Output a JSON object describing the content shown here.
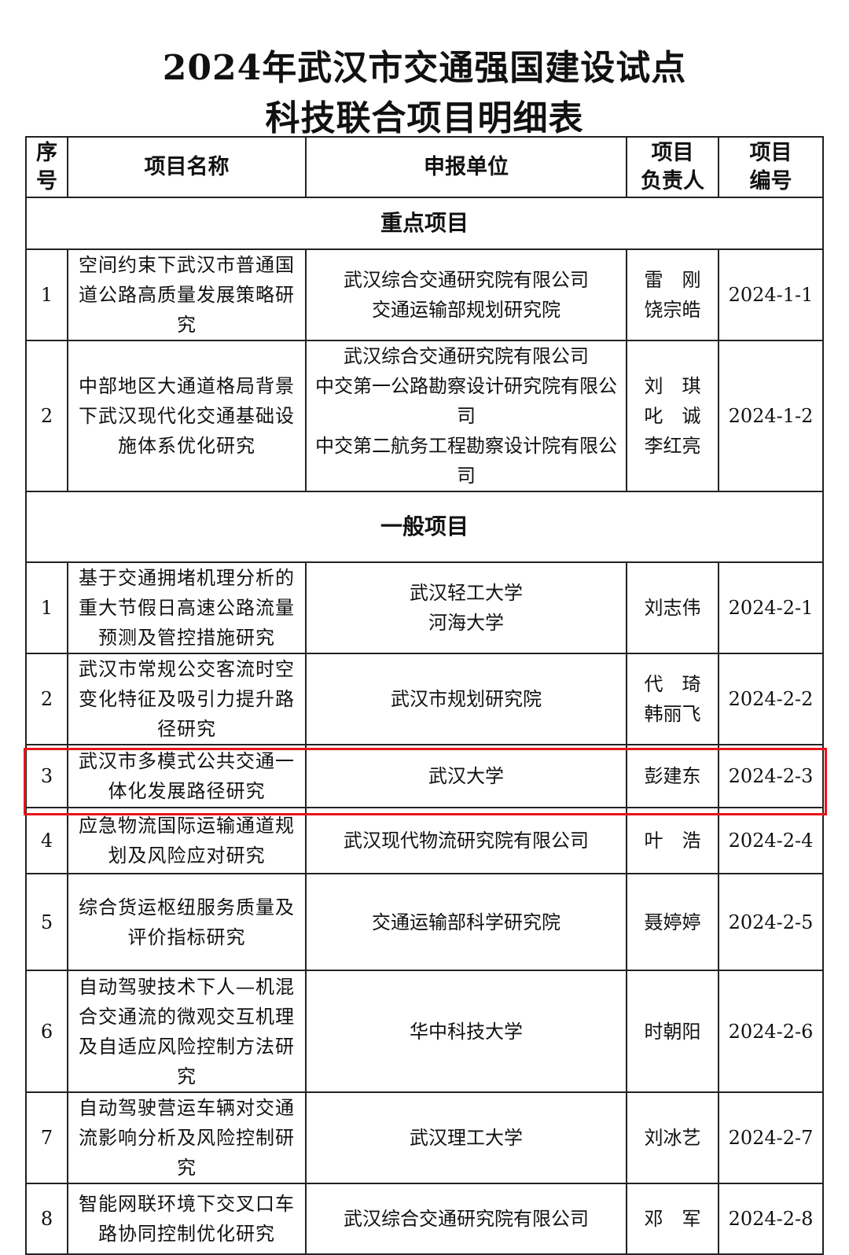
{
  "title_line1": "2024年武汉市交通强国建设试点",
  "title_line2": "科技联合项目明细表",
  "headers": [
    "序\n号",
    "项目名称",
    "申报单位",
    "项目\n负责人",
    "项目\n编号"
  ],
  "highlight_color": "#e8141b",
  "sections": [
    {
      "label": "重点项目",
      "rows": [
        {
          "no": "1",
          "name": "空间约束下武汉市普通国\n道公路高质量发展策略研\n究",
          "unit": "武汉综合交通研究院有限公司\n交通运输部规划研究院",
          "pi": "雷　刚\n饶宗皓",
          "code": "2024-1-1"
        },
        {
          "no": "2",
          "name": "中部地区大通道格局背景\n下武汉现代化交通基础设\n施体系优化研究",
          "unit": "武汉综合交通研究院有限公司\n中交第一公路勘察设计研究院有限公司\n中交第二航务工程勘察设计院有限公司",
          "pi": "刘　琪\n叱　诚\n李红亮",
          "code": "2024-1-2"
        }
      ]
    },
    {
      "label": "一般项目",
      "rows": [
        {
          "no": "1",
          "name": "基于交通拥堵机理分析的\n重大节假日高速公路流量\n预测及管控措施研究",
          "unit": "武汉轻工大学\n河海大学",
          "pi": "刘志伟",
          "code": "2024-2-1"
        },
        {
          "no": "2",
          "name": "武汉市常规公交客流时空\n变化特征及吸引力提升路\n径研究",
          "unit": "武汉市规划研究院",
          "pi": "代　琦\n韩丽飞",
          "code": "2024-2-2"
        },
        {
          "no": "3",
          "name": "武汉市多模式公共交通一\n体化发展路径研究",
          "unit": "武汉大学",
          "pi": "彭建东",
          "code": "2024-2-3"
        },
        {
          "no": "4",
          "name": "应急物流国际运输通道规\n划及风险应对研究",
          "unit": "武汉现代物流研究院有限公司",
          "pi": "叶　浩",
          "code": "2024-2-4",
          "highlighted": true
        },
        {
          "no": "5",
          "name": "综合货运枢纽服务质量及\n评价指标研究",
          "unit": "交通运输部科学研究院",
          "pi": "聂婷婷",
          "code": "2024-2-5"
        },
        {
          "no": "6",
          "name": "自动驾驶技术下人—机混\n合交通流的微观交互机理\n及自适应风险控制方法研\n究",
          "unit": "华中科技大学",
          "pi": "时朝阳",
          "code": "2024-2-6"
        },
        {
          "no": "7",
          "name": "自动驾驶营运车辆对交通\n流影响分析及风险控制研\n究",
          "unit": "武汉理工大学",
          "pi": "刘冰艺",
          "code": "2024-2-7"
        },
        {
          "no": "8",
          "name": "智能网联环境下交叉口车\n路协同控制优化研究",
          "unit": "武汉综合交通研究院有限公司",
          "pi": "邓　军",
          "code": "2024-2-8"
        }
      ]
    }
  ]
}
